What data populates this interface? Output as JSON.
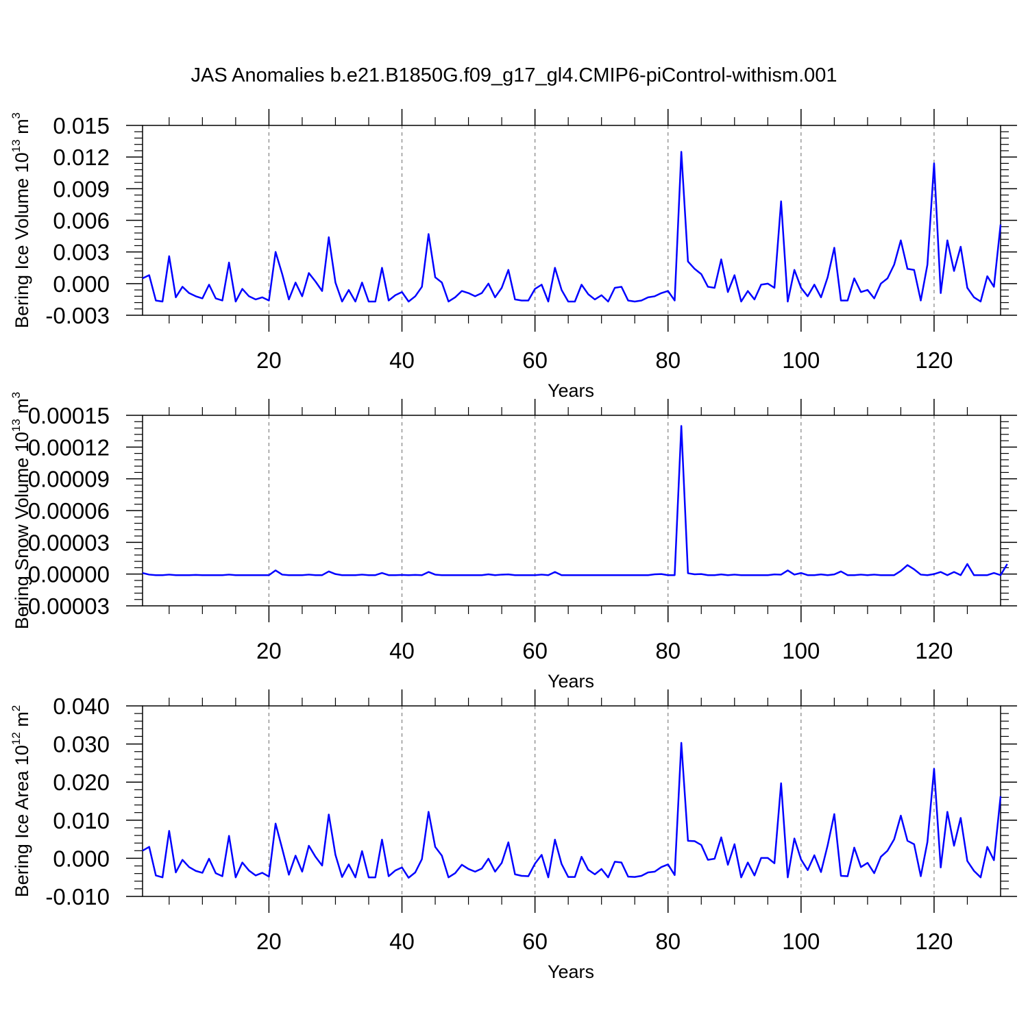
{
  "title": "JAS Anomalies b.e21.B1850G.f09_g17_gl4.CMIP6-piControl-withism.001",
  "colors": {
    "series": "#0000ff",
    "axis": "#000000",
    "grid": "#808080"
  },
  "chart_data": [
    {
      "type": "line",
      "ylabel_main": "Bering Ice Volume 10",
      "ylabel_exp": "13",
      "ylabel_unit": "m",
      "ylabel_unit_exp": "3",
      "xlabel": "Years",
      "xlim": [
        1,
        130
      ],
      "ylim": [
        -0.003,
        0.015
      ],
      "x_ticks": [
        20,
        40,
        60,
        80,
        100,
        120
      ],
      "x_tick_labels": [
        "20",
        "40",
        "60",
        "80",
        "100",
        "120"
      ],
      "y_ticks": [
        -0.003,
        0,
        0.003,
        0.006,
        0.009,
        0.012,
        0.015
      ],
      "y_tick_labels": [
        "-0.003",
        "0.000",
        "0.003",
        "0.006",
        "0.009",
        "0.012",
        "0.015"
      ],
      "grid": "vertical dashed at major x ticks",
      "values": [
        0.0005,
        0.0008,
        -0.0016,
        -0.0017,
        0.0026,
        -0.0013,
        -0.0003,
        -0.0009,
        -0.0012,
        -0.0014,
        -0.0001,
        -0.0014,
        -0.0016,
        0.002,
        -0.0017,
        -0.0005,
        -0.0012,
        -0.0015,
        -0.0013,
        -0.0016,
        0.003,
        0.0009,
        -0.0015,
        0.0001,
        -0.0012,
        0.001,
        0.0002,
        -0.0007,
        0.0044,
        0.0001,
        -0.0017,
        -0.0006,
        -0.0017,
        0.0001,
        -0.0017,
        -0.0017,
        0.0015,
        -0.0016,
        -0.0011,
        -0.0008,
        -0.0017,
        -0.0012,
        -0.0003,
        0.0047,
        0.0006,
        0.0001,
        -0.0017,
        -0.0013,
        -0.0007,
        -0.0009,
        -0.0012,
        -0.0009,
        0,
        -0.0013,
        -0.0004,
        0.0013,
        -0.0015,
        -0.0016,
        -0.0016,
        -0.0005,
        -0.0001,
        -0.0017,
        0.0015,
        -0.0006,
        -0.0017,
        -0.0017,
        -0.0001,
        -0.001,
        -0.0015,
        -0.0011,
        -0.0017,
        -0.0004,
        -0.0003,
        -0.0016,
        -0.0017,
        -0.0016,
        -0.0013,
        -0.0012,
        -0.0009,
        -0.0007,
        -0.0016,
        0.0125,
        0.0021,
        0.0014,
        0.0009,
        -0.0003,
        -0.0004,
        0.0023,
        -0.0008,
        0.0008,
        -0.0017,
        -0.0007,
        -0.0015,
        -0.0001,
        0,
        -0.0004,
        0.0078,
        -0.0017,
        0.0013,
        -0.0004,
        -0.0012,
        -0.0001,
        -0.0013,
        0.0006,
        0.0034,
        -0.0016,
        -0.0016,
        0.0005,
        -0.0008,
        -0.0006,
        -0.0014,
        0,
        0.0005,
        0.0018,
        0.0041,
        0.0014,
        0.0013,
        -0.0016,
        0.0018,
        0.0114,
        -0.0009,
        0.0041,
        0.0012,
        0.0035,
        -0.0004,
        -0.0013,
        -0.0017,
        0.0007,
        -0.0003,
        0.0056
      ]
    },
    {
      "type": "line",
      "ylabel_main": "Bering Snow Volume 10",
      "ylabel_exp": "13",
      "ylabel_unit": "m",
      "ylabel_unit_exp": "3",
      "xlabel": "Years",
      "xlim": [
        1,
        130
      ],
      "ylim": [
        -3e-05,
        0.00015
      ],
      "x_ticks": [
        20,
        40,
        60,
        80,
        100,
        120
      ],
      "x_tick_labels": [
        "20",
        "40",
        "60",
        "80",
        "100",
        "120"
      ],
      "y_ticks": [
        -3e-05,
        0,
        3e-05,
        6e-05,
        9e-05,
        0.00012,
        0.00015
      ],
      "y_tick_labels": [
        "-0.00003",
        "0.00000",
        "0.00003",
        "0.00006",
        "0.00009",
        "0.00012",
        "0.00015"
      ],
      "grid": "vertical dashed at major x ticks",
      "values": [
        1e-06,
        -5e-07,
        -1e-06,
        -1e-06,
        -5e-07,
        -1e-06,
        -1e-06,
        -1e-06,
        -8e-07,
        -1e-06,
        -1e-06,
        -1e-06,
        -1e-06,
        -5e-07,
        -1e-06,
        -1e-06,
        -1e-06,
        -1e-06,
        -1e-06,
        -1e-06,
        3.5e-06,
        -5e-07,
        -1e-06,
        -1e-06,
        -1e-06,
        -5e-07,
        -1e-06,
        -1e-06,
        2.5e-06,
        0,
        -1e-06,
        -1e-06,
        -1e-06,
        -5e-07,
        -1e-06,
        -1e-06,
        1e-06,
        -1e-06,
        -1e-06,
        -8e-07,
        -1e-06,
        -8e-07,
        -1e-06,
        2e-06,
        -5e-07,
        -1e-06,
        -1e-06,
        -1e-06,
        -1e-06,
        -1e-06,
        -1e-06,
        -1e-06,
        -2e-07,
        -1e-06,
        -5e-07,
        -3e-07,
        -1e-06,
        -1e-06,
        -1e-06,
        -1e-06,
        -5e-07,
        -1e-06,
        2e-06,
        -1e-06,
        -1e-06,
        -1e-06,
        -1e-06,
        -1e-06,
        -1e-06,
        -1e-06,
        -1e-06,
        -1e-06,
        -1e-06,
        -1e-06,
        -1e-06,
        -1e-06,
        -1e-06,
        -2e-07,
        0,
        -1e-06,
        -1e-06,
        0.00014,
        8e-07,
        -2e-07,
        0,
        -1e-06,
        -1e-06,
        -3e-07,
        -1e-06,
        -5e-07,
        -1e-06,
        -1e-06,
        -1e-06,
        -1e-06,
        -1e-06,
        -3e-07,
        -5e-07,
        3.5e-06,
        -5e-07,
        1e-06,
        -1e-06,
        -1e-06,
        -3e-07,
        -1e-06,
        -3e-07,
        2.5e-06,
        -1e-06,
        -1e-06,
        -5e-07,
        -1e-06,
        -5e-07,
        -1e-06,
        -1e-06,
        -1e-06,
        3e-06,
        8.5e-06,
        4.5e-06,
        -5e-07,
        -1e-06,
        0,
        2e-06,
        -1e-06,
        2e-06,
        -1e-06,
        9.5e-06,
        -1e-06,
        -1e-06,
        -1e-06,
        1e-06,
        -1e-06,
        9.5e-06
      ]
    },
    {
      "type": "line",
      "ylabel_main": "Bering Ice Area 10",
      "ylabel_exp": "12",
      "ylabel_unit": "m",
      "ylabel_unit_exp": "2",
      "xlabel": "Years",
      "xlim": [
        1,
        130
      ],
      "ylim": [
        -0.01,
        0.04
      ],
      "x_ticks": [
        20,
        40,
        60,
        80,
        100,
        120
      ],
      "x_tick_labels": [
        "20",
        "40",
        "60",
        "80",
        "100",
        "120"
      ],
      "y_ticks": [
        -0.01,
        0,
        0.01,
        0.02,
        0.03,
        0.04
      ],
      "y_tick_labels": [
        "-0.010",
        "0.000",
        "0.010",
        "0.020",
        "0.030",
        "0.040"
      ],
      "grid": "vertical dashed at major x ticks",
      "values": [
        0.002,
        0.003,
        -0.0045,
        -0.005,
        0.0072,
        -0.0037,
        -0.0004,
        -0.0023,
        -0.0033,
        -0.0038,
        -0.0001,
        -0.0039,
        -0.0047,
        0.0059,
        -0.005,
        -0.0011,
        -0.0032,
        -0.0045,
        -0.0038,
        -0.0048,
        0.0091,
        0.0025,
        -0.0043,
        0.0007,
        -0.0035,
        0.0033,
        0.0004,
        -0.0019,
        0.0115,
        0.0009,
        -0.0049,
        -0.0016,
        -0.005,
        0.0019,
        -0.005,
        -0.005,
        0.0049,
        -0.0047,
        -0.0032,
        -0.0024,
        -0.0051,
        -0.0037,
        -0.0002,
        0.0122,
        0.003,
        0.0007,
        -0.005,
        -0.0039,
        -0.0017,
        -0.0028,
        -0.0035,
        -0.0027,
        -0.0001,
        -0.0035,
        -0.0012,
        0.0042,
        -0.0042,
        -0.0046,
        -0.0047,
        -0.0014,
        0.0009,
        -0.005,
        0.0049,
        -0.0015,
        -0.0049,
        -0.0049,
        0.0004,
        -0.003,
        -0.0042,
        -0.0028,
        -0.005,
        -0.0009,
        -0.0011,
        -0.0048,
        -0.0049,
        -0.0046,
        -0.0037,
        -0.0035,
        -0.0023,
        -0.0016,
        -0.0044,
        0.0303,
        0.0046,
        0.0045,
        0.0035,
        -0.0004,
        -0.0001,
        0.0055,
        -0.0017,
        0.0037,
        -0.005,
        -0.0011,
        -0.0045,
        0.0001,
        0.0001,
        -0.0013,
        0.0197,
        -0.005,
        0.0052,
        -0.0003,
        -0.0031,
        0.0008,
        -0.0036,
        0.0034,
        0.0116,
        -0.0046,
        -0.0047,
        0.0028,
        -0.0023,
        -0.0012,
        -0.0039,
        0.0004,
        0.002,
        0.005,
        0.0112,
        0.0046,
        0.0037,
        -0.0047,
        0.0043,
        0.0235,
        -0.0024,
        0.0122,
        0.0033,
        0.0106,
        -0.0007,
        -0.0033,
        -0.005,
        0.003,
        -0.0005,
        0.0163
      ]
    }
  ]
}
